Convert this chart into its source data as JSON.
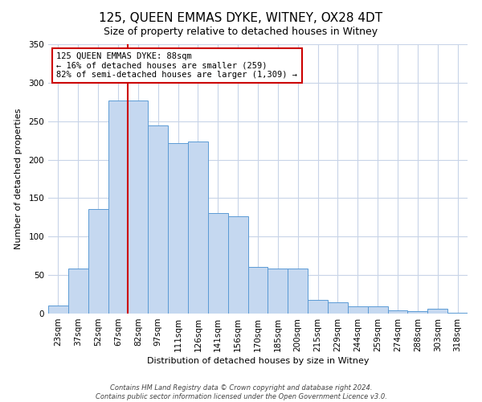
{
  "title": "125, QUEEN EMMAS DYKE, WITNEY, OX28 4DT",
  "subtitle": "Size of property relative to detached houses in Witney",
  "xlabel": "Distribution of detached houses by size in Witney",
  "ylabel": "Number of detached properties",
  "bar_labels": [
    "23sqm",
    "37sqm",
    "52sqm",
    "67sqm",
    "82sqm",
    "97sqm",
    "111sqm",
    "126sqm",
    "141sqm",
    "156sqm",
    "170sqm",
    "185sqm",
    "200sqm",
    "215sqm",
    "229sqm",
    "244sqm",
    "259sqm",
    "274sqm",
    "288sqm",
    "303sqm",
    "318sqm"
  ],
  "bar_values": [
    10,
    59,
    136,
    277,
    277,
    245,
    221,
    224,
    131,
    126,
    61,
    58,
    58,
    18,
    15,
    9,
    9,
    4,
    3,
    6,
    1
  ],
  "bar_color": "#c5d8f0",
  "bar_edge_color": "#5b9bd5",
  "highlight_line_index": 4,
  "highlight_line_color": "#cc0000",
  "annotation_text": "125 QUEEN EMMAS DYKE: 88sqm\n← 16% of detached houses are smaller (259)\n82% of semi-detached houses are larger (1,309) →",
  "annotation_box_color": "#ffffff",
  "annotation_box_edge_color": "#cc0000",
  "ylim": [
    0,
    350
  ],
  "yticks": [
    0,
    50,
    100,
    150,
    200,
    250,
    300,
    350
  ],
  "footer_line1": "Contains HM Land Registry data © Crown copyright and database right 2024.",
  "footer_line2": "Contains public sector information licensed under the Open Government Licence v3.0.",
  "background_color": "#ffffff",
  "grid_color": "#c8d4e8",
  "title_fontsize": 11,
  "subtitle_fontsize": 9,
  "axis_label_fontsize": 8,
  "tick_fontsize": 7.5,
  "footer_fontsize": 6
}
